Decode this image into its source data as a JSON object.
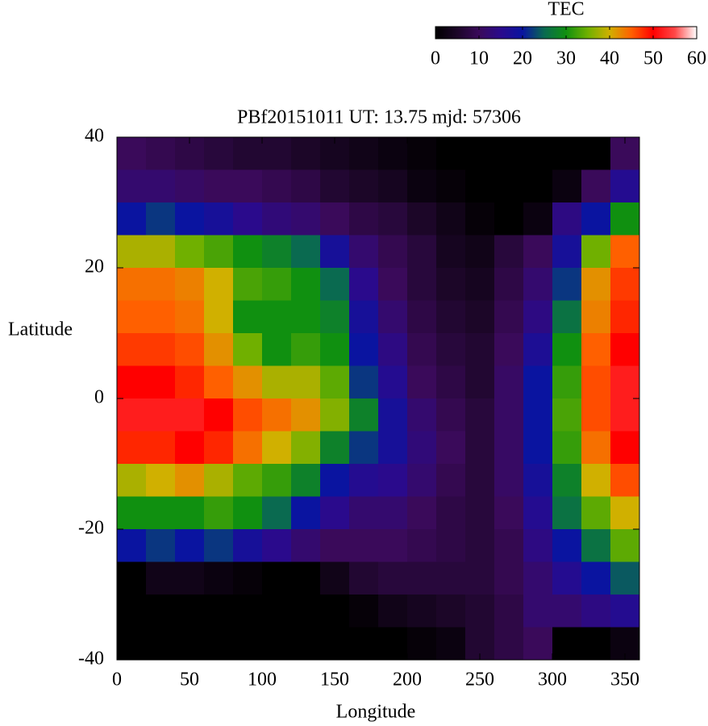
{
  "chart_data": {
    "type": "heatmap",
    "title": "PBf20151011  UT: 13.75  mjd: 57306",
    "xlabel": "Longitude",
    "ylabel": "Latitude",
    "xlim": [
      0,
      360
    ],
    "ylim": [
      -40,
      40
    ],
    "xticks": [
      0,
      50,
      100,
      150,
      200,
      250,
      300,
      350
    ],
    "yticks": [
      -40,
      -20,
      0,
      20,
      40
    ],
    "x": [
      10,
      30,
      50,
      70,
      90,
      110,
      130,
      150,
      170,
      190,
      210,
      230,
      250,
      270,
      290,
      310,
      330,
      350
    ],
    "y": [
      37.5,
      32.5,
      27.5,
      22.5,
      17.5,
      12.5,
      7.5,
      2.5,
      -2.5,
      -7.5,
      -12.5,
      -17.5,
      -22.5,
      -27.5,
      -32.5,
      -37.5
    ],
    "z": [
      [
        10,
        9,
        8,
        7,
        6,
        6,
        5,
        4,
        3,
        2,
        1,
        0,
        0,
        0,
        0,
        0,
        0,
        10
      ],
      [
        12,
        12,
        11,
        10,
        10,
        9,
        8,
        6,
        5,
        4,
        2,
        1,
        0,
        0,
        0,
        2,
        10,
        16
      ],
      [
        20,
        22,
        20,
        18,
        15,
        13,
        12,
        10,
        8,
        7,
        5,
        3,
        1,
        0,
        2,
        14,
        20,
        30
      ],
      [
        38,
        38,
        35,
        33,
        30,
        28,
        25,
        18,
        12,
        9,
        7,
        4,
        3,
        7,
        10,
        18,
        35,
        45
      ],
      [
        44,
        44,
        43,
        40,
        33,
        32,
        30,
        25,
        15,
        10,
        7,
        5,
        4,
        8,
        12,
        22,
        42,
        47
      ],
      [
        45,
        45,
        44,
        40,
        30,
        30,
        30,
        28,
        18,
        12,
        8,
        6,
        5,
        9,
        14,
        26,
        43,
        48
      ],
      [
        47,
        47,
        46,
        42,
        35,
        30,
        32,
        30,
        20,
        14,
        9,
        7,
        6,
        10,
        17,
        30,
        45,
        50
      ],
      [
        50,
        50,
        48,
        45,
        42,
        38,
        38,
        34,
        22,
        16,
        10,
        8,
        6,
        11,
        20,
        32,
        46,
        52
      ],
      [
        52,
        52,
        52,
        50,
        46,
        44,
        42,
        36,
        28,
        18,
        12,
        9,
        7,
        11,
        20,
        33,
        46,
        52
      ],
      [
        48,
        48,
        50,
        48,
        44,
        40,
        36,
        28,
        22,
        18,
        13,
        10,
        7,
        11,
        20,
        32,
        44,
        50
      ],
      [
        38,
        40,
        42,
        38,
        34,
        32,
        28,
        20,
        16,
        15,
        12,
        9,
        7,
        11,
        18,
        28,
        40,
        46
      ],
      [
        30,
        30,
        30,
        32,
        30,
        25,
        20,
        15,
        12,
        12,
        10,
        8,
        7,
        10,
        16,
        26,
        34,
        40
      ],
      [
        20,
        22,
        20,
        22,
        18,
        15,
        12,
        10,
        10,
        10,
        9,
        8,
        7,
        9,
        14,
        20,
        26,
        34
      ],
      [
        0,
        3,
        3,
        2,
        1,
        0,
        0,
        3,
        6,
        7,
        7,
        7,
        7,
        9,
        12,
        16,
        20,
        24
      ],
      [
        0,
        0,
        0,
        0,
        0,
        0,
        0,
        0,
        1,
        3,
        4,
        5,
        6,
        8,
        12,
        12,
        14,
        16
      ],
      [
        0,
        0,
        0,
        0,
        0,
        0,
        0,
        0,
        0,
        0,
        1,
        2,
        6,
        8,
        10,
        0,
        0,
        2
      ]
    ],
    "colorbar": {
      "title": "TEC",
      "lim": [
        0,
        60
      ],
      "ticks": [
        0,
        10,
        20,
        30,
        40,
        50,
        60
      ],
      "colors": [
        "#000000",
        "#1c0628",
        "#3a0a5a",
        "#2a0a8c",
        "#0a14a0",
        "#0a6a50",
        "#109010",
        "#70b000",
        "#d0b000",
        "#ff6000",
        "#ff0000",
        "#ff4848",
        "#ffffff"
      ]
    }
  }
}
